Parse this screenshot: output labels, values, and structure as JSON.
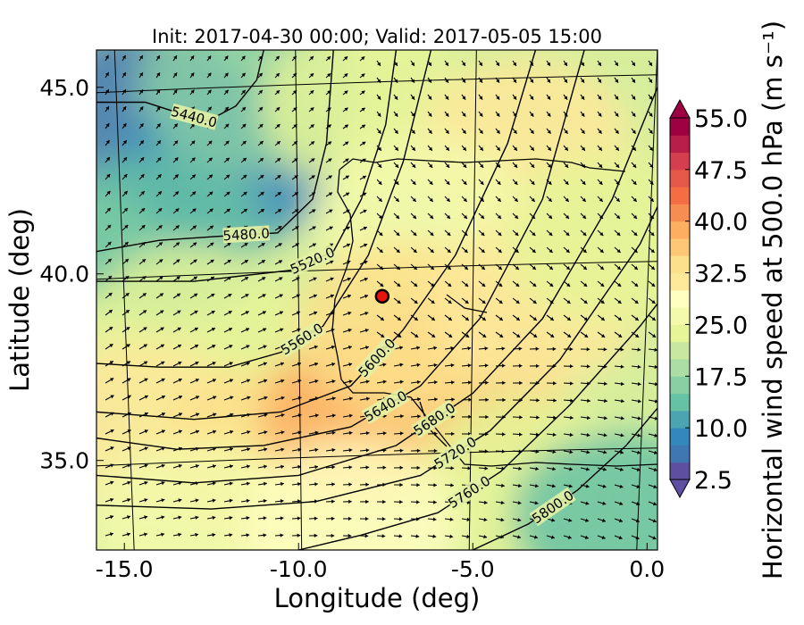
{
  "chart_data": {
    "type": "heatmap",
    "title": "Init: 2017-04-30 00:00; Valid: 2017-05-05 15:00",
    "xlabel": "Longitude (deg)",
    "ylabel": "Latitude (deg)",
    "colorbar_label": "Horizontal wind speed at 500.0 hPa (m s⁻¹)",
    "xlim": [
      -15.8,
      0.3
    ],
    "ylim": [
      32.6,
      46.0
    ],
    "x_ticks": [
      {
        "value": -15,
        "label": "-15.0"
      },
      {
        "value": -10,
        "label": "-10.0"
      },
      {
        "value": -5,
        "label": "-5.0"
      },
      {
        "value": 0,
        "label": "0.0"
      }
    ],
    "y_ticks": [
      {
        "value": 35,
        "label": "35.0"
      },
      {
        "value": 40,
        "label": "40.0"
      },
      {
        "value": 45,
        "label": "45.0"
      }
    ],
    "colorbar": {
      "min": 2.5,
      "max": 55.0,
      "extend": "both",
      "ticks": [
        {
          "value": 2.5,
          "label": "2.5"
        },
        {
          "value": 10.0,
          "label": "10.0"
        },
        {
          "value": 17.5,
          "label": "17.5"
        },
        {
          "value": 25.0,
          "label": "25.0"
        },
        {
          "value": 32.5,
          "label": "32.5"
        },
        {
          "value": 40.0,
          "label": "40.0"
        },
        {
          "value": 47.5,
          "label": "47.5"
        },
        {
          "value": 55.0,
          "label": "55.0"
        }
      ],
      "colors": [
        "#5e4fa2",
        "#3f77b5",
        "#3288bd",
        "#4ba4b1",
        "#66c2a5",
        "#88cfa4",
        "#abdda4",
        "#c7e89e",
        "#e6f598",
        "#f3faac",
        "#ffffbf",
        "#fee99a",
        "#fee08b",
        "#fdc776",
        "#fdae61",
        "#f88d52",
        "#f46d43",
        "#e65848",
        "#d53e4f",
        "#b91e48",
        "#9e0142"
      ]
    },
    "wind_speed_field": [
      {
        "lon": -14.5,
        "lat": 44.3,
        "value": 6
      },
      {
        "lon": -12.0,
        "lat": 43.0,
        "value": 8
      },
      {
        "lon": -14.0,
        "lat": 41.0,
        "value": 14
      },
      {
        "lon": -11.5,
        "lat": 45.0,
        "value": 16
      },
      {
        "lon": -8.0,
        "lat": 44.5,
        "value": 24
      },
      {
        "lon": -3.5,
        "lat": 43.5,
        "value": 30
      },
      {
        "lon": -6.5,
        "lat": 41.5,
        "value": 27
      },
      {
        "lon": -13.0,
        "lat": 38.5,
        "value": 23
      },
      {
        "lon": -14.5,
        "lat": 36.0,
        "value": 30
      },
      {
        "lon": -11.0,
        "lat": 35.2,
        "value": 34
      },
      {
        "lon": -8.0,
        "lat": 36.2,
        "value": 38
      },
      {
        "lon": -5.5,
        "lat": 37.2,
        "value": 36
      },
      {
        "lon": -7.0,
        "lat": 38.6,
        "value": 33
      },
      {
        "lon": -3.2,
        "lat": 39.2,
        "value": 30
      },
      {
        "lon": -1.0,
        "lat": 41.0,
        "value": 24
      },
      {
        "lon": -3.5,
        "lat": 34.5,
        "value": 24
      },
      {
        "lon": -0.8,
        "lat": 33.5,
        "value": 14
      },
      {
        "lon": -13.0,
        "lat": 33.3,
        "value": 27
      },
      {
        "lon": -8.5,
        "lat": 33.3,
        "value": 28
      }
    ],
    "height_contours": [
      {
        "label": "5440.0",
        "points": [
          [
            -15.8,
            44.6
          ],
          [
            -14.4,
            44.6
          ],
          [
            -13.4,
            44.3
          ],
          [
            -12.6,
            44.1
          ],
          [
            -11.8,
            44.5
          ],
          [
            -11.2,
            45.2
          ],
          [
            -11.0,
            46.0
          ]
        ]
      },
      {
        "label": "5480.0",
        "points": [
          [
            -15.8,
            40.6
          ],
          [
            -14.0,
            40.9
          ],
          [
            -12.4,
            41.0
          ],
          [
            -10.6,
            41.1
          ],
          [
            -9.6,
            42.0
          ],
          [
            -9.2,
            43.5
          ],
          [
            -9.0,
            46.0
          ]
        ]
      },
      {
        "label": "5520.0",
        "points": [
          [
            -15.8,
            39.8
          ],
          [
            -13.0,
            39.8
          ],
          [
            -10.2,
            40.1
          ],
          [
            -9.0,
            40.6
          ],
          [
            -8.2,
            42.0
          ],
          [
            -7.5,
            44.0
          ],
          [
            -7.2,
            46.0
          ]
        ]
      },
      {
        "label": "5560.0",
        "points": [
          [
            -15.8,
            37.6
          ],
          [
            -14.0,
            37.5
          ],
          [
            -12.0,
            37.5
          ],
          [
            -10.5,
            37.9
          ],
          [
            -9.3,
            38.6
          ],
          [
            -8.0,
            40.5
          ],
          [
            -7.0,
            43.0
          ],
          [
            -6.2,
            46.0
          ]
        ]
      },
      {
        "label": "5600.0",
        "points": [
          [
            -15.8,
            36.3
          ],
          [
            -13.0,
            36.1
          ],
          [
            -10.5,
            36.3
          ],
          [
            -8.5,
            37.0
          ],
          [
            -7.0,
            38.5
          ],
          [
            -5.5,
            40.5
          ],
          [
            -4.0,
            43.5
          ],
          [
            -3.2,
            46.0
          ]
        ]
      },
      {
        "label": "5640.0",
        "points": [
          [
            -15.8,
            35.6
          ],
          [
            -13.5,
            35.3
          ],
          [
            -11.0,
            35.4
          ],
          [
            -8.5,
            35.9
          ],
          [
            -6.5,
            37.0
          ],
          [
            -4.8,
            38.8
          ],
          [
            -3.0,
            42.0
          ],
          [
            -1.8,
            46.0
          ]
        ]
      },
      {
        "label": "5680.0",
        "points": [
          [
            -15.8,
            34.6
          ],
          [
            -13.0,
            34.4
          ],
          [
            -10.0,
            34.6
          ],
          [
            -7.2,
            35.4
          ],
          [
            -5.0,
            36.8
          ],
          [
            -3.0,
            38.8
          ],
          [
            -1.0,
            42.0
          ],
          [
            0.3,
            45.0
          ]
        ]
      },
      {
        "label": "5720.0",
        "points": [
          [
            -15.8,
            33.8
          ],
          [
            -12.5,
            33.7
          ],
          [
            -9.5,
            33.9
          ],
          [
            -6.5,
            34.6
          ],
          [
            -4.5,
            35.8
          ],
          [
            -2.5,
            37.7
          ],
          [
            -0.2,
            40.8
          ],
          [
            0.3,
            41.8
          ]
        ]
      },
      {
        "label": "5760.0",
        "points": [
          [
            -10.0,
            32.6
          ],
          [
            -8.2,
            33.0
          ],
          [
            -6.0,
            33.6
          ],
          [
            -4.2,
            34.7
          ],
          [
            -2.2,
            36.5
          ],
          [
            -0.2,
            38.6
          ],
          [
            0.3,
            39.2
          ]
        ]
      },
      {
        "label": "5800.0",
        "points": [
          [
            -5.0,
            32.6
          ],
          [
            -3.4,
            33.3
          ],
          [
            -2.0,
            34.2
          ],
          [
            -0.6,
            35.4
          ],
          [
            0.3,
            36.4
          ]
        ]
      }
    ],
    "station_marker": {
      "lon": -7.6,
      "lat": 39.4,
      "color": "#e8140c"
    }
  }
}
